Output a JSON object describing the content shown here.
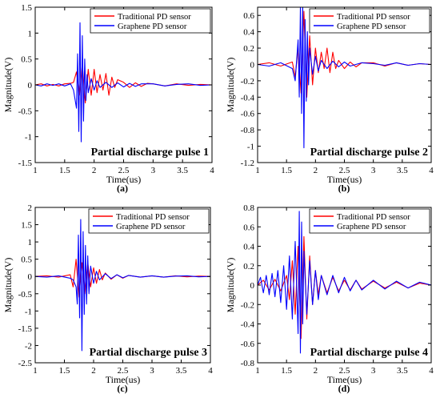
{
  "colors": {
    "traditional": "#ff0000",
    "graphene": "#0000ff",
    "axis": "#000000"
  },
  "chart_data": [
    {
      "type": "line",
      "panel_label": "(a)",
      "annotation": "Partial discharge pulse 1",
      "xlabel": "Time(us)",
      "ylabel": "Magnitude(V)",
      "xlim": [
        1,
        4
      ],
      "ylim": [
        -1.5,
        1.5
      ],
      "xticks": [
        "1",
        "1.5",
        "2",
        "2.5",
        "3",
        "3.5",
        "4"
      ],
      "yticks": [
        "-1.5",
        "-1",
        "-0.5",
        "0",
        "0.5",
        "1",
        "1.5"
      ],
      "legend_position": "top-right",
      "series": [
        {
          "name": "Traditional PD sensor",
          "color": "#ff0000",
          "x": [
            1.0,
            1.1,
            1.2,
            1.3,
            1.4,
            1.5,
            1.6,
            1.65,
            1.7,
            1.75,
            1.8,
            1.85,
            1.9,
            1.95,
            2.0,
            2.05,
            2.1,
            2.15,
            2.2,
            2.25,
            2.3,
            2.35,
            2.4,
            2.5,
            2.6,
            2.7,
            2.8,
            2.9,
            3.0,
            3.2,
            3.4,
            3.6,
            3.8,
            4.0
          ],
          "y": [
            0.0,
            0.02,
            -0.02,
            0.01,
            -0.02,
            0.02,
            0.03,
            0.05,
            0.25,
            -0.2,
            0.4,
            -0.35,
            0.3,
            -0.2,
            0.3,
            -0.15,
            0.2,
            -0.1,
            0.22,
            -0.2,
            0.15,
            -0.05,
            0.1,
            0.05,
            -0.05,
            0.04,
            -0.03,
            0.03,
            0.02,
            -0.02,
            0.02,
            -0.01,
            0.01,
            0.0
          ]
        },
        {
          "name": "Graphene PD sensor",
          "color": "#0000ff",
          "x": [
            1.0,
            1.1,
            1.2,
            1.3,
            1.4,
            1.5,
            1.6,
            1.65,
            1.7,
            1.72,
            1.74,
            1.76,
            1.78,
            1.8,
            1.82,
            1.84,
            1.86,
            1.88,
            1.9,
            1.95,
            2.0,
            2.05,
            2.1,
            2.2,
            2.3,
            2.4,
            2.5,
            2.6,
            2.7,
            2.8,
            3.0,
            3.2,
            3.4,
            3.6,
            3.8,
            4.0
          ],
          "y": [
            0.0,
            -0.02,
            0.02,
            -0.01,
            0.02,
            -0.02,
            0.02,
            -0.1,
            -0.45,
            0.6,
            -0.9,
            1.2,
            -1.1,
            0.95,
            -0.7,
            0.5,
            -0.3,
            0.2,
            -0.15,
            0.12,
            -0.1,
            0.08,
            -0.05,
            0.05,
            -0.05,
            0.04,
            -0.04,
            0.03,
            -0.03,
            0.02,
            0.02,
            -0.02,
            0.01,
            0.02,
            -0.01,
            0.0
          ]
        }
      ]
    },
    {
      "type": "line",
      "panel_label": "(b)",
      "annotation": "Partial discharge pulse 2",
      "xlabel": "Time(us)",
      "ylabel": "Magnitude(V)",
      "xlim": [
        1,
        4
      ],
      "ylim": [
        -1.2,
        0.7
      ],
      "xticks": [
        "1",
        "1.5",
        "2",
        "2.5",
        "3",
        "3.5",
        "4"
      ],
      "yticks": [
        "-1.2",
        "-1",
        "-0.8",
        "-0.6",
        "-0.4",
        "-0.2",
        "0",
        "0.2",
        "0.4",
        "0.6"
      ],
      "legend_position": "top-right",
      "series": [
        {
          "name": "Traditional PD sensor",
          "color": "#ff0000",
          "x": [
            1.0,
            1.2,
            1.4,
            1.6,
            1.65,
            1.7,
            1.75,
            1.8,
            1.85,
            1.9,
            1.95,
            2.0,
            2.05,
            2.1,
            2.15,
            2.2,
            2.25,
            2.3,
            2.35,
            2.4,
            2.5,
            2.6,
            2.7,
            2.8,
            3.0,
            3.2,
            3.4,
            3.6,
            3.8,
            4.0
          ],
          "y": [
            0.0,
            0.02,
            -0.02,
            0.03,
            -0.15,
            0.2,
            -0.35,
            0.65,
            -0.4,
            0.35,
            -0.25,
            0.2,
            -0.1,
            0.15,
            -0.05,
            0.2,
            -0.1,
            0.15,
            -0.05,
            0.05,
            -0.05,
            0.03,
            -0.03,
            0.02,
            0.02,
            -0.02,
            0.02,
            -0.01,
            0.01,
            0.0
          ]
        },
        {
          "name": "Graphene PD sensor",
          "color": "#0000ff",
          "x": [
            1.0,
            1.2,
            1.4,
            1.6,
            1.65,
            1.7,
            1.72,
            1.74,
            1.76,
            1.78,
            1.8,
            1.82,
            1.84,
            1.86,
            1.88,
            1.9,
            1.95,
            2.0,
            2.05,
            2.1,
            2.2,
            2.3,
            2.4,
            2.5,
            2.6,
            2.8,
            3.0,
            3.2,
            3.4,
            3.6,
            3.8,
            4.0
          ],
          "y": [
            0.0,
            -0.02,
            0.02,
            -0.05,
            -0.2,
            0.3,
            -0.4,
            0.7,
            -0.6,
            0.75,
            -1.02,
            0.55,
            -0.45,
            0.4,
            -0.25,
            0.2,
            -0.12,
            0.1,
            -0.08,
            0.05,
            -0.05,
            0.04,
            -0.03,
            0.03,
            -0.02,
            0.02,
            0.01,
            -0.01,
            0.02,
            -0.01,
            0.01,
            0.0
          ]
        }
      ]
    },
    {
      "type": "line",
      "panel_label": "(c)",
      "annotation": "Partial discharge pulse 3",
      "xlabel": "Time(us)",
      "ylabel": "Magnitude(V)",
      "xlim": [
        1,
        4
      ],
      "ylim": [
        -2.5,
        2
      ],
      "xticks": [
        "1",
        "1.5",
        "2",
        "2.5",
        "3",
        "3.5",
        "4"
      ],
      "yticks": [
        "-2.5",
        "-2",
        "-1.5",
        "-1",
        "-0.5",
        "0",
        "0.5",
        "1",
        "1.5",
        "2"
      ],
      "legend_position": "top-right",
      "series": [
        {
          "name": "Traditional PD sensor",
          "color": "#ff0000",
          "x": [
            1.0,
            1.2,
            1.4,
            1.6,
            1.65,
            1.7,
            1.75,
            1.8,
            1.85,
            1.9,
            1.95,
            2.0,
            2.05,
            2.1,
            2.15,
            2.2,
            2.3,
            2.4,
            2.5,
            2.6,
            2.8,
            3.0,
            3.2,
            3.4,
            3.6,
            3.8,
            4.0
          ],
          "y": [
            0.0,
            0.02,
            -0.02,
            0.05,
            -0.3,
            0.5,
            -0.6,
            0.4,
            -0.5,
            0.4,
            -0.3,
            0.25,
            -0.2,
            0.2,
            -0.1,
            0.1,
            -0.08,
            0.05,
            -0.05,
            0.03,
            -0.02,
            0.02,
            -0.02,
            0.02,
            -0.01,
            0.01,
            0.0
          ]
        },
        {
          "name": "Graphene PD sensor",
          "color": "#0000ff",
          "x": [
            1.0,
            1.2,
            1.4,
            1.6,
            1.65,
            1.7,
            1.72,
            1.74,
            1.76,
            1.78,
            1.8,
            1.82,
            1.84,
            1.86,
            1.88,
            1.9,
            1.92,
            1.95,
            2.0,
            2.05,
            2.1,
            2.2,
            2.3,
            2.4,
            2.5,
            2.6,
            2.8,
            3.0,
            3.2,
            3.4,
            3.6,
            3.8,
            4.0
          ],
          "y": [
            0.0,
            -0.02,
            0.02,
            -0.05,
            -0.1,
            -0.3,
            -0.8,
            1.2,
            -1.2,
            1.65,
            -2.15,
            1.3,
            -1.1,
            0.9,
            -0.8,
            0.6,
            -0.5,
            0.3,
            -0.2,
            0.15,
            -0.1,
            0.08,
            -0.06,
            0.05,
            -0.04,
            0.03,
            -0.02,
            0.02,
            -0.02,
            0.01,
            0.02,
            -0.01,
            0.0
          ]
        }
      ]
    },
    {
      "type": "line",
      "panel_label": "(d)",
      "annotation": "Partial discharge pulse 4",
      "xlabel": "Time(us)",
      "ylabel": "Magnitude(V)",
      "xlim": [
        1,
        4
      ],
      "ylim": [
        -0.8,
        0.8
      ],
      "xticks": [
        "1",
        "1.5",
        "2",
        "2.5",
        "3",
        "3.5",
        "4"
      ],
      "yticks": [
        "-0.8",
        "-0.6",
        "-0.4",
        "-0.2",
        "0",
        "0.2",
        "0.4",
        "0.6",
        "0.8"
      ],
      "legend_position": "top-right",
      "series": [
        {
          "name": "Traditional PD sensor",
          "color": "#ff0000",
          "x": [
            1.0,
            1.1,
            1.2,
            1.3,
            1.4,
            1.5,
            1.55,
            1.6,
            1.65,
            1.7,
            1.75,
            1.8,
            1.85,
            1.9,
            1.95,
            2.0,
            2.05,
            2.1,
            2.2,
            2.3,
            2.4,
            2.5,
            2.6,
            2.7,
            2.8,
            3.0,
            3.2,
            3.4,
            3.6,
            3.8,
            4.0
          ],
          "y": [
            0.0,
            0.05,
            -0.05,
            0.06,
            -0.06,
            0.1,
            -0.15,
            0.25,
            -0.3,
            0.4,
            -0.55,
            0.5,
            -0.35,
            0.3,
            -0.2,
            0.15,
            -0.1,
            0.1,
            -0.08,
            0.08,
            -0.06,
            0.05,
            -0.05,
            0.05,
            -0.04,
            0.04,
            -0.03,
            0.03,
            -0.03,
            0.02,
            0.0
          ]
        },
        {
          "name": "Graphene PD sensor",
          "color": "#0000ff",
          "x": [
            1.0,
            1.05,
            1.1,
            1.15,
            1.2,
            1.25,
            1.3,
            1.35,
            1.4,
            1.45,
            1.5,
            1.55,
            1.6,
            1.65,
            1.7,
            1.72,
            1.74,
            1.76,
            1.78,
            1.8,
            1.85,
            1.9,
            1.95,
            2.0,
            2.05,
            2.1,
            2.2,
            2.3,
            2.4,
            2.5,
            2.6,
            2.7,
            2.8,
            3.0,
            3.2,
            3.4,
            3.6,
            3.8,
            4.0
          ],
          "y": [
            0.0,
            0.08,
            -0.08,
            0.1,
            -0.1,
            0.12,
            -0.12,
            0.15,
            -0.18,
            0.2,
            -0.25,
            0.3,
            -0.35,
            0.45,
            -0.5,
            0.76,
            -0.7,
            0.65,
            -0.4,
            0.35,
            -0.3,
            0.25,
            -0.2,
            0.15,
            -0.15,
            0.1,
            -0.1,
            0.1,
            -0.08,
            0.08,
            -0.06,
            0.05,
            -0.05,
            0.05,
            -0.04,
            0.04,
            -0.03,
            0.03,
            0.0
          ]
        }
      ]
    }
  ]
}
